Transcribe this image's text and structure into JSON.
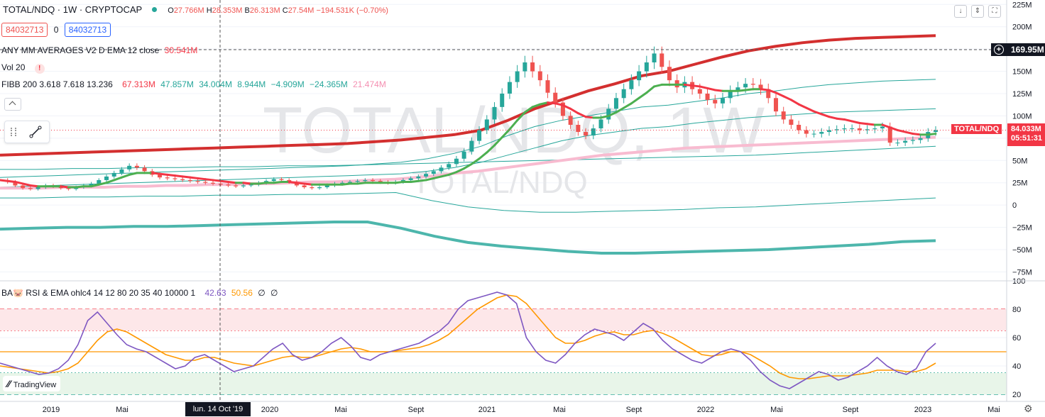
{
  "header": {
    "symbol": "TOTAL/NDQ · 1W · CRYPTOCAP",
    "o_label": "O",
    "o_val": "27.766M",
    "h_label": "H",
    "h_val": "28.353M",
    "b_label": "B",
    "b_val": "26.313M",
    "c_label": "C",
    "c_val": "27.54M",
    "chg": "−194.531K (−0.70%)",
    "sell_val": "84032713",
    "zero": "0",
    "buy_val": "84032713"
  },
  "indicators": {
    "ema": {
      "name": "ANY MM AVERAGES V2 D EMA 12 close",
      "value": "30.541M"
    },
    "vol": {
      "name": "Vol 20",
      "warn": "!"
    },
    "fibb": {
      "name": "FIBB 200 3.618 7.618 13.236",
      "values": [
        "67.313M",
        "47.857M",
        "34.004M",
        "8.944M",
        "−4.909M",
        "−24.365M",
        "21.474M"
      ]
    },
    "rsi": {
      "name": "BA🐷 RSI & EMA ohlc4 14 12 80 20 35 40 10000 1",
      "rsi_val": "42.63",
      "ema_val": "50.56",
      "z1": "∅",
      "z2": "∅"
    }
  },
  "watermark": {
    "big": "TOTAL/NDQ, 1W",
    "small": "TOTAL/NDQ"
  },
  "right_labels": {
    "crosshair_price": "169.95M",
    "series_label": "TOTAL/NDQ",
    "last_price": "84.033M",
    "countdown": "05:51:31",
    "crosshair_date": "lun. 14 Oct '19"
  },
  "branding": {
    "name": "TradingView"
  },
  "colors": {
    "up": "#26a69a",
    "down": "#ef5350",
    "ema_red": "#f23645",
    "ema_green": "#4caf50",
    "ma200": "#f8bbd0",
    "fib_top": "#d32f2f",
    "fib_bottom": "#4db6ac",
    "rsi": "#7e57c2",
    "rsi_ema": "#ff9800"
  },
  "chart_data": {
    "type": "line",
    "price_axis": {
      "ticks": [
        "225M",
        "200M",
        "175M",
        "150M",
        "125M",
        "100M",
        "75M",
        "50M",
        "25M",
        "0",
        "−25M",
        "−50M",
        "−75M"
      ],
      "ylim": [
        -85,
        230
      ]
    },
    "rsi_axis": {
      "ticks": [
        "100",
        "80",
        "60",
        "40",
        "20"
      ],
      "ylim": [
        15,
        100
      ],
      "levels": [
        80,
        65,
        50,
        35,
        20
      ]
    },
    "x_ticks": [
      "2019",
      "Mai",
      "2020",
      "Mai",
      "Sept",
      "2021",
      "Mai",
      "Sept",
      "2022",
      "Mai",
      "Sept",
      "2023",
      "Mai"
    ],
    "price_close": [
      28,
      26,
      22,
      19,
      18,
      20,
      22,
      21,
      19,
      18,
      20,
      22,
      24,
      28,
      32,
      36,
      40,
      44,
      42,
      38,
      34,
      31,
      30,
      29,
      28,
      27,
      26,
      25,
      24,
      23,
      22,
      21,
      22,
      23,
      25,
      27,
      29,
      28,
      26,
      22,
      20,
      19,
      20,
      22,
      24,
      25,
      26,
      27,
      28,
      27,
      26,
      25,
      26,
      28,
      30,
      32,
      35,
      38,
      42,
      46,
      52,
      60,
      72,
      84,
      96,
      110,
      125,
      138,
      150,
      160,
      150,
      140,
      126,
      115,
      100,
      90,
      82,
      78,
      86,
      96,
      108,
      120,
      130,
      140,
      150,
      160,
      170,
      155,
      140,
      132,
      138,
      130,
      125,
      118,
      114,
      120,
      128,
      132,
      136,
      135,
      130,
      120,
      105,
      96,
      90,
      84,
      80,
      80,
      82,
      84,
      85,
      86,
      86,
      84,
      85,
      86,
      88,
      70,
      70,
      72,
      73,
      75,
      82,
      84
    ],
    "ema12": [
      28,
      27,
      26,
      24,
      22,
      21,
      21,
      21,
      21,
      20,
      20,
      21,
      21,
      23,
      25,
      28,
      31,
      34,
      36,
      36,
      36,
      35,
      34,
      33,
      32,
      31,
      30,
      29,
      28,
      27,
      26,
      25,
      25,
      24,
      24,
      25,
      25,
      26,
      26,
      25,
      24,
      23,
      23,
      23,
      23,
      23,
      24,
      24,
      25,
      25,
      25,
      25,
      25,
      26,
      26,
      27,
      28,
      30,
      32,
      34,
      37,
      41,
      46,
      52,
      59,
      67,
      76,
      85,
      95,
      104,
      110,
      113,
      115,
      114,
      112,
      108,
      103,
      99,
      98,
      98,
      100,
      104,
      109,
      114,
      120,
      126,
      133,
      135,
      135,
      135,
      135,
      134,
      133,
      131,
      129,
      128,
      128,
      128,
      129,
      130,
      130,
      129,
      126,
      122,
      118,
      113,
      109,
      105,
      102,
      99,
      97,
      96,
      94,
      92,
      91,
      90,
      90,
      87,
      84,
      82,
      80,
      79,
      79,
      80
    ],
    "ma200": [
      19,
      19,
      19,
      20,
      20,
      20,
      21,
      21,
      22,
      22,
      23,
      23,
      24,
      24,
      25,
      26,
      26,
      27,
      28,
      29,
      31,
      33,
      36,
      38,
      41,
      44,
      47,
      50,
      53,
      56,
      58,
      60,
      62,
      64,
      65,
      66,
      67,
      68,
      69,
      70,
      71,
      72,
      73,
      74,
      75,
      76
    ],
    "fib_top": [
      56,
      57,
      58,
      59,
      60,
      61,
      62,
      63,
      64,
      65,
      66,
      67,
      68,
      69,
      71,
      73,
      76,
      79,
      84,
      95,
      108,
      118,
      128,
      136,
      145,
      150,
      158,
      166,
      173,
      178,
      182,
      185,
      187,
      188,
      189,
      190
    ],
    "fib_bottom": [
      -27,
      -26,
      -25,
      -25,
      -24,
      -24,
      -23,
      -22,
      -21,
      -20,
      -19,
      -19,
      -26,
      -35,
      -42,
      -46,
      -49,
      -52,
      -54,
      -54,
      -53,
      -52,
      -51,
      -50,
      -48,
      -46,
      -44,
      -41,
      -40
    ],
    "rsi": [
      42,
      40,
      38,
      36,
      34,
      35,
      38,
      44,
      55,
      72,
      78,
      70,
      62,
      55,
      52,
      50,
      46,
      42,
      38,
      40,
      46,
      48,
      44,
      40,
      36,
      38,
      40,
      46,
      52,
      56,
      48,
      44,
      46,
      50,
      56,
      60,
      54,
      46,
      44,
      48,
      50,
      52,
      54,
      56,
      60,
      64,
      70,
      80,
      86,
      88,
      90,
      92,
      90,
      84,
      60,
      50,
      44,
      42,
      48,
      56,
      62,
      66,
      64,
      62,
      58,
      64,
      70,
      66,
      58,
      52,
      48,
      44,
      42,
      46,
      50,
      52,
      50,
      44,
      36,
      30,
      26,
      24,
      28,
      32,
      36,
      34,
      30,
      32,
      36,
      40,
      46,
      40,
      36,
      34,
      38,
      50,
      56
    ],
    "rsi_ema": [
      40,
      39,
      38,
      37,
      36,
      35,
      36,
      38,
      42,
      50,
      58,
      64,
      66,
      64,
      60,
      56,
      52,
      48,
      46,
      44,
      44,
      46,
      46,
      44,
      42,
      41,
      40,
      42,
      44,
      46,
      47,
      46,
      46,
      48,
      50,
      52,
      53,
      52,
      50,
      50,
      50,
      51,
      52,
      53,
      55,
      58,
      62,
      68,
      74,
      80,
      84,
      88,
      90,
      89,
      84,
      76,
      68,
      60,
      56,
      56,
      58,
      61,
      63,
      64,
      62,
      62,
      64,
      65,
      63,
      60,
      56,
      52,
      48,
      47,
      48,
      50,
      50,
      48,
      44,
      40,
      35,
      32,
      31,
      31,
      32,
      33,
      33,
      33,
      34,
      35,
      37,
      37,
      37,
      36,
      36,
      38,
      42
    ]
  }
}
